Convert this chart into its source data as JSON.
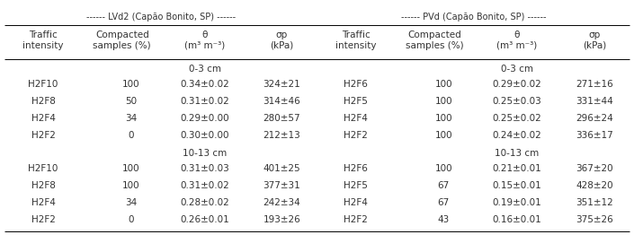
{
  "title_left": "------ LVd2 (Capão Bonito, SP) ------",
  "title_right": "------ PVd (Capão Bonito, SP) ------",
  "header_row_left": [
    "Traffic\nintensity",
    "Compacted\nsamples (%)",
    "θ\n(m³ m⁻³)",
    "σp\n(kPa)"
  ],
  "header_row_right": [
    "Traffic\nintensity",
    "Compacted\nsamples (%)",
    "θ\n(m³ m⁻³)",
    "σp\n(kPa)"
  ],
  "section_03": "0-3 cm",
  "section_1013": "10-13 cm",
  "rows_03_left": [
    [
      "H2F10",
      "100",
      "0.34±0.02",
      "324±21"
    ],
    [
      "H2F8",
      "50",
      "0.31±0.02",
      "314±46"
    ],
    [
      "H2F4",
      "34",
      "0.29±0.00",
      "280±57"
    ],
    [
      "H2F2",
      "0",
      "0.30±0.00",
      "212±13"
    ]
  ],
  "rows_1013_left": [
    [
      "H2F10",
      "100",
      "0.31±0.03",
      "401±25"
    ],
    [
      "H2F8",
      "100",
      "0.31±0.02",
      "377±31"
    ],
    [
      "H2F4",
      "34",
      "0.28±0.02",
      "242±34"
    ],
    [
      "H2F2",
      "0",
      "0.26±0.01",
      "193±26"
    ]
  ],
  "rows_03_right": [
    [
      "H2F6",
      "100",
      "0.29±0.02",
      "271±16"
    ],
    [
      "H2F5",
      "100",
      "0.25±0.03",
      "331±44"
    ],
    [
      "H2F4",
      "100",
      "0.25±0.02",
      "296±24"
    ],
    [
      "H2F2",
      "100",
      "0.24±0.02",
      "336±17"
    ]
  ],
  "rows_1013_right": [
    [
      "H2F6",
      "100",
      "0.21±0.01",
      "367±20"
    ],
    [
      "H2F5",
      "67",
      "0.15±0.01",
      "428±20"
    ],
    [
      "H2F4",
      "67",
      "0.19±0.01",
      "351±12"
    ],
    [
      "H2F2",
      "43",
      "0.16±0.01",
      "375±26"
    ]
  ],
  "bg": "#ffffff",
  "fg": "#333333",
  "fs_title": 7.0,
  "fs_header": 7.5,
  "fs_data": 7.5
}
